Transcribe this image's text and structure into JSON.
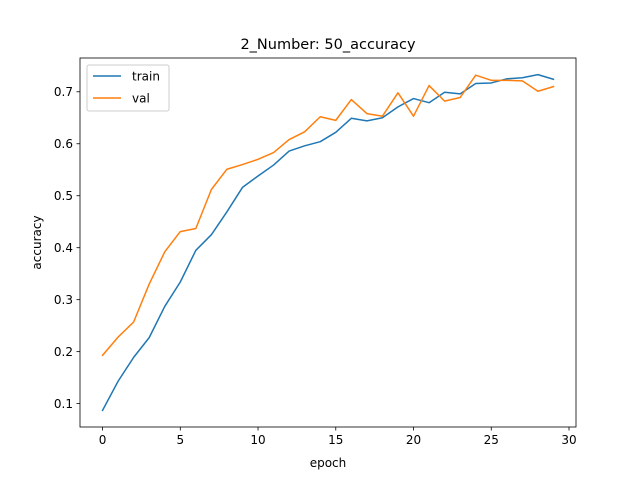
{
  "chart_data": {
    "type": "line",
    "title": "2_Number: 50_accuracy",
    "xlabel": "epoch",
    "ylabel": "accuracy",
    "xlim": [
      -1.45,
      30.45
    ],
    "ylim": [
      0.055,
      0.765
    ],
    "xticks": [
      0,
      5,
      10,
      15,
      20,
      25,
      30
    ],
    "yticks": [
      0.1,
      0.2,
      0.3,
      0.4,
      0.5,
      0.6,
      0.7
    ],
    "grid": false,
    "legend_position": "upper-left",
    "x": [
      0,
      1,
      2,
      3,
      4,
      5,
      6,
      7,
      8,
      9,
      10,
      11,
      12,
      13,
      14,
      15,
      16,
      17,
      18,
      19,
      20,
      21,
      22,
      23,
      24,
      25,
      26,
      27,
      28,
      29
    ],
    "series": [
      {
        "name": "train",
        "color": "#1f77b4",
        "values": [
          0.087,
          0.143,
          0.189,
          0.227,
          0.287,
          0.334,
          0.395,
          0.425,
          0.469,
          0.516,
          0.538,
          0.559,
          0.586,
          0.596,
          0.604,
          0.622,
          0.649,
          0.644,
          0.65,
          0.671,
          0.687,
          0.679,
          0.699,
          0.696,
          0.716,
          0.717,
          0.725,
          0.727,
          0.733,
          0.724
        ]
      },
      {
        "name": "val",
        "color": "#ff7f0e",
        "values": [
          0.193,
          0.228,
          0.257,
          0.33,
          0.392,
          0.431,
          0.437,
          0.512,
          0.551,
          0.56,
          0.57,
          0.583,
          0.608,
          0.623,
          0.652,
          0.645,
          0.685,
          0.658,
          0.653,
          0.698,
          0.653,
          0.712,
          0.682,
          0.689,
          0.732,
          0.722,
          0.722,
          0.721,
          0.701,
          0.71
        ]
      }
    ]
  }
}
